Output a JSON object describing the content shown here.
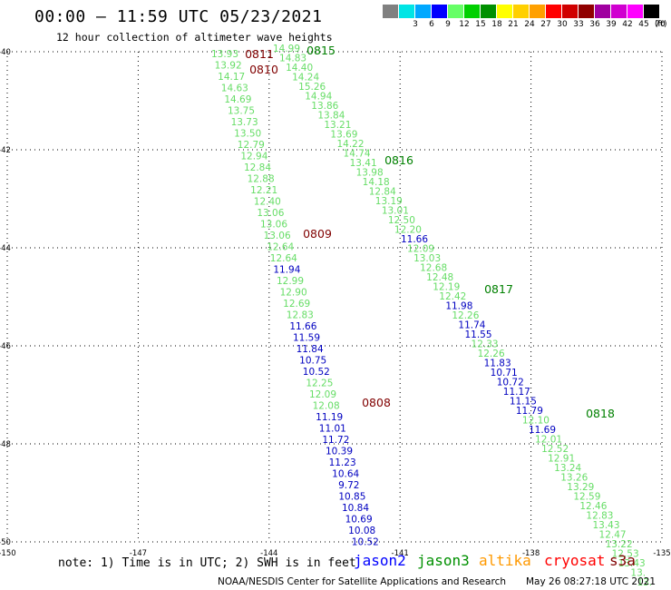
{
  "header": {
    "title": "00:00 – 11:59 UTC 05/23/2021",
    "subtitle": "12 hour collection of altimeter wave heights"
  },
  "legend": {
    "unit": "(ft)",
    "bins": [
      {
        "label": "",
        "color": "#808080"
      },
      {
        "label": "3",
        "color": "#00e5e5"
      },
      {
        "label": "6",
        "color": "#00a8ff"
      },
      {
        "label": "9",
        "color": "#0000ff"
      },
      {
        "label": "12",
        "color": "#66ff66"
      },
      {
        "label": "15",
        "color": "#00d000"
      },
      {
        "label": "18",
        "color": "#009000"
      },
      {
        "label": "21",
        "color": "#ffff00"
      },
      {
        "label": "24",
        "color": "#ffd000"
      },
      {
        "label": "27",
        "color": "#ffa000"
      },
      {
        "label": "30",
        "color": "#ff0000"
      },
      {
        "label": "33",
        "color": "#d00000"
      },
      {
        "label": "36",
        "color": "#900000"
      },
      {
        "label": "39",
        "color": "#a000a0"
      },
      {
        "label": "42",
        "color": "#d000d0"
      },
      {
        "label": "45",
        "color": "#ff00ff"
      },
      {
        "label": "70",
        "color": "#000000"
      }
    ]
  },
  "axes": {
    "lat_labels": [
      "-40",
      "-42",
      "-44",
      "-46",
      "-48",
      "-50"
    ],
    "lon_labels": [
      "-150",
      "-147",
      "-144",
      "-141",
      "-138",
      "-135"
    ],
    "lon_range": [
      -150,
      -135
    ],
    "lat_range": [
      -40,
      -50
    ]
  },
  "colors": {
    "low": "#0000c0",
    "mid": "#66dd66",
    "pass_label_green": "#008000",
    "pass_label_red": "#800000"
  },
  "tracks": [
    {
      "points": [
        {
          "v": "13.93",
          "c": "mid"
        },
        {
          "v": "13.92",
          "c": "mid"
        },
        {
          "v": "14.17",
          "c": "mid"
        },
        {
          "v": "14.63",
          "c": "mid"
        },
        {
          "v": "14.69",
          "c": "mid"
        },
        {
          "v": "13.75",
          "c": "mid"
        },
        {
          "v": "13.73",
          "c": "mid"
        },
        {
          "v": "13.50",
          "c": "mid"
        },
        {
          "v": "12.79",
          "c": "mid"
        },
        {
          "v": "12.94",
          "c": "mid"
        },
        {
          "v": "12.84",
          "c": "mid"
        },
        {
          "v": "12.88",
          "c": "mid"
        },
        {
          "v": "12.21",
          "c": "mid"
        },
        {
          "v": "12.40",
          "c": "mid"
        },
        {
          "v": "13.06",
          "c": "mid"
        },
        {
          "v": "13.06",
          "c": "mid"
        },
        {
          "v": "13.06",
          "c": "mid"
        },
        {
          "v": "12.64",
          "c": "mid"
        },
        {
          "v": "12.64",
          "c": "mid"
        },
        {
          "v": "11.94",
          "c": "low"
        },
        {
          "v": "12.99",
          "c": "mid"
        },
        {
          "v": "12.90",
          "c": "mid"
        },
        {
          "v": "12.69",
          "c": "mid"
        },
        {
          "v": "12.83",
          "c": "mid"
        },
        {
          "v": "11.66",
          "c": "low"
        },
        {
          "v": "11.59",
          "c": "low"
        },
        {
          "v": "11.84",
          "c": "low"
        },
        {
          "v": "10.75",
          "c": "low"
        },
        {
          "v": "10.52",
          "c": "low"
        },
        {
          "v": "12.25",
          "c": "mid"
        },
        {
          "v": "12.09",
          "c": "mid"
        },
        {
          "v": "12.08",
          "c": "mid"
        },
        {
          "v": "11.19",
          "c": "low"
        },
        {
          "v": "11.01",
          "c": "low"
        },
        {
          "v": "11.72",
          "c": "low"
        },
        {
          "v": "10.39",
          "c": "low"
        },
        {
          "v": "11.23",
          "c": "low"
        },
        {
          "v": "10.64",
          "c": "low"
        },
        {
          "v": "9.72",
          "c": "low"
        },
        {
          "v": "10.85",
          "c": "low"
        },
        {
          "v": "10.84",
          "c": "low"
        },
        {
          "v": "10.69",
          "c": "low"
        },
        {
          "v": "10.08",
          "c": "low"
        },
        {
          "v": "10.52",
          "c": "low"
        }
      ]
    },
    {
      "points": [
        {
          "v": "14.99",
          "c": "mid"
        },
        {
          "v": "14.83",
          "c": "mid"
        },
        {
          "v": "14.40",
          "c": "mid"
        },
        {
          "v": "14.24",
          "c": "mid"
        },
        {
          "v": "15.26",
          "c": "mid"
        },
        {
          "v": "14.94",
          "c": "mid"
        },
        {
          "v": "13.86",
          "c": "mid"
        },
        {
          "v": "13.84",
          "c": "mid"
        },
        {
          "v": "13.21",
          "c": "mid"
        },
        {
          "v": "13.69",
          "c": "mid"
        },
        {
          "v": "14.22",
          "c": "mid"
        },
        {
          "v": "14.74",
          "c": "mid"
        },
        {
          "v": "13.41",
          "c": "mid"
        },
        {
          "v": "13.98",
          "c": "mid"
        },
        {
          "v": "14.18",
          "c": "mid"
        },
        {
          "v": "12.84",
          "c": "mid"
        },
        {
          "v": "13.19",
          "c": "mid"
        },
        {
          "v": "13.01",
          "c": "mid"
        },
        {
          "v": "12.50",
          "c": "mid"
        },
        {
          "v": "12.20",
          "c": "mid"
        },
        {
          "v": "11.66",
          "c": "low"
        },
        {
          "v": "12.09",
          "c": "mid"
        },
        {
          "v": "13.03",
          "c": "mid"
        },
        {
          "v": "12.68",
          "c": "mid"
        },
        {
          "v": "12.48",
          "c": "mid"
        },
        {
          "v": "12.19",
          "c": "mid"
        },
        {
          "v": "12.42",
          "c": "mid"
        },
        {
          "v": "11.98",
          "c": "low"
        },
        {
          "v": "12.26",
          "c": "mid"
        },
        {
          "v": "11.74",
          "c": "low"
        },
        {
          "v": "11.55",
          "c": "low"
        },
        {
          "v": "12.33",
          "c": "mid"
        },
        {
          "v": "12.26",
          "c": "mid"
        },
        {
          "v": "11.83",
          "c": "low"
        },
        {
          "v": "10.71",
          "c": "low"
        },
        {
          "v": "10.72",
          "c": "low"
        },
        {
          "v": "11.17",
          "c": "low"
        },
        {
          "v": "11.15",
          "c": "low"
        },
        {
          "v": "11.79",
          "c": "low"
        },
        {
          "v": "12.10",
          "c": "mid"
        },
        {
          "v": "11.69",
          "c": "low"
        },
        {
          "v": "12.01",
          "c": "mid"
        },
        {
          "v": "12.52",
          "c": "mid"
        },
        {
          "v": "12.91",
          "c": "mid"
        },
        {
          "v": "13.24",
          "c": "mid"
        },
        {
          "v": "13.26",
          "c": "mid"
        },
        {
          "v": "13.29",
          "c": "mid"
        },
        {
          "v": "12.59",
          "c": "mid"
        },
        {
          "v": "12.46",
          "c": "mid"
        },
        {
          "v": "12.83",
          "c": "mid"
        },
        {
          "v": "13.43",
          "c": "mid"
        },
        {
          "v": "12.47",
          "c": "mid"
        },
        {
          "v": "13.22",
          "c": "mid"
        },
        {
          "v": "12.53",
          "c": "mid"
        },
        {
          "v": "13.43",
          "c": "mid"
        },
        {
          "v": "13.",
          "c": "mid"
        },
        {
          "v": "13.",
          "c": "mid"
        }
      ]
    }
  ],
  "pass_labels": [
    {
      "text": "0811",
      "color": "pass_label_red"
    },
    {
      "text": "0810",
      "color": "pass_label_red"
    },
    {
      "text": "0815",
      "color": "pass_label_green"
    },
    {
      "text": "0816",
      "color": "pass_label_green"
    },
    {
      "text": "0809",
      "color": "pass_label_red"
    },
    {
      "text": "0817",
      "color": "pass_label_green"
    },
    {
      "text": "0808",
      "color": "pass_label_red"
    },
    {
      "text": "0818",
      "color": "pass_label_green"
    }
  ],
  "footer": {
    "note": "note:  1) Time is in UTC; 2) SWH is in feet",
    "satellites": [
      {
        "name": "jason2",
        "color": "#0000ff"
      },
      {
        "name": "jason3",
        "color": "#009000"
      },
      {
        "name": "altika",
        "color": "#ff9900"
      },
      {
        "name": "cryosat",
        "color": "#ff0000"
      },
      {
        "name": "s3a",
        "color": "#800000"
      }
    ],
    "credit": "NOAA/NESDIS Center for Satellite Applications and Research",
    "timestamp": "May 26 08:27:18 UTC 2021"
  }
}
